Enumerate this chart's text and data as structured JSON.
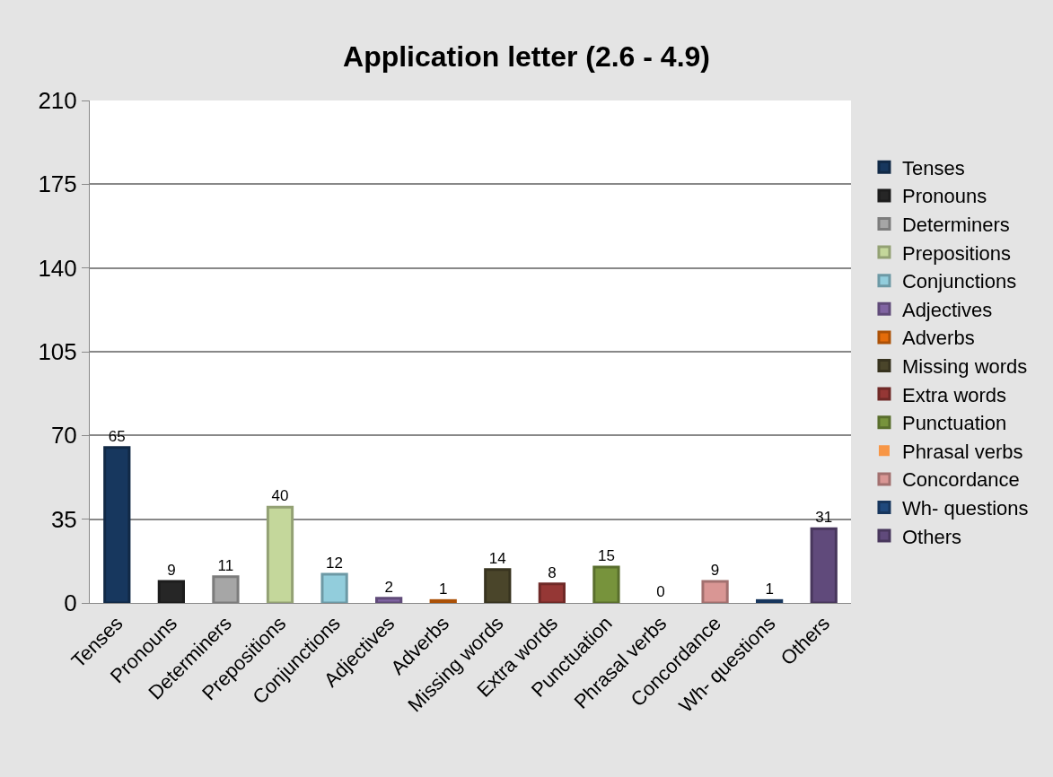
{
  "chart_data": {
    "type": "bar",
    "title": "Application letter (2.6 - 4.9)",
    "categories": [
      "Tenses",
      "Pronouns",
      "Determiners",
      "Prepositions",
      "Conjunctions",
      "Adjectives",
      "Adverbs",
      "Missing words",
      "Extra words",
      "Punctuation",
      "Phrasal verbs",
      "Concordance",
      "Wh- questions",
      "Others"
    ],
    "series": [
      {
        "name": "Tenses",
        "color": "#17375e",
        "values": [
          65,
          null,
          null,
          null,
          null,
          null,
          null,
          null,
          null,
          null,
          null,
          null,
          null,
          null
        ]
      },
      {
        "name": "Pronouns",
        "color": "#262626",
        "values": [
          null,
          9,
          null,
          null,
          null,
          null,
          null,
          null,
          null,
          null,
          null,
          null,
          null,
          null
        ]
      },
      {
        "name": "Determiners",
        "color": "#a6a6a6",
        "values": [
          null,
          null,
          11,
          null,
          null,
          null,
          null,
          null,
          null,
          null,
          null,
          null,
          null,
          null
        ]
      },
      {
        "name": "Prepositions",
        "color": "#c4d79b",
        "values": [
          null,
          null,
          null,
          40,
          null,
          null,
          null,
          null,
          null,
          null,
          null,
          null,
          null,
          null
        ]
      },
      {
        "name": "Conjunctions",
        "color": "#92cddc",
        "values": [
          null,
          null,
          null,
          null,
          12,
          null,
          null,
          null,
          null,
          null,
          null,
          null,
          null,
          null
        ]
      },
      {
        "name": "Adjectives",
        "color": "#8064a2",
        "values": [
          null,
          null,
          null,
          null,
          null,
          2,
          null,
          null,
          null,
          null,
          null,
          null,
          null,
          null
        ]
      },
      {
        "name": "Adverbs",
        "color": "#e46c0a",
        "values": [
          null,
          null,
          null,
          null,
          null,
          null,
          1,
          null,
          null,
          null,
          null,
          null,
          null,
          null
        ]
      },
      {
        "name": "Missing words",
        "color": "#4a452a",
        "values": [
          null,
          null,
          null,
          null,
          null,
          null,
          null,
          14,
          null,
          null,
          null,
          null,
          null,
          null
        ]
      },
      {
        "name": "Extra words",
        "color": "#953735",
        "values": [
          null,
          null,
          null,
          null,
          null,
          null,
          null,
          null,
          8,
          null,
          null,
          null,
          null,
          null
        ]
      },
      {
        "name": "Punctuation",
        "color": "#77933c",
        "values": [
          null,
          null,
          null,
          null,
          null,
          null,
          null,
          null,
          null,
          15,
          null,
          null,
          null,
          null
        ]
      },
      {
        "name": "Phrasal verbs",
        "color": "#f79646",
        "values": [
          null,
          null,
          null,
          null,
          null,
          null,
          null,
          null,
          null,
          null,
          0,
          null,
          null,
          null
        ]
      },
      {
        "name": "Concordance",
        "color": "#d99694",
        "values": [
          null,
          null,
          null,
          null,
          null,
          null,
          null,
          null,
          null,
          null,
          null,
          9,
          null,
          null
        ]
      },
      {
        "name": "Wh- questions",
        "color": "#1f497d",
        "values": [
          null,
          null,
          null,
          null,
          null,
          null,
          null,
          null,
          null,
          null,
          null,
          null,
          1,
          null
        ]
      },
      {
        "name": "Others",
        "color": "#604a7b",
        "values": [
          null,
          null,
          null,
          null,
          null,
          null,
          null,
          null,
          null,
          null,
          null,
          null,
          null,
          31
        ]
      }
    ],
    "ylim": [
      0,
      210
    ],
    "yticks": [
      0,
      35,
      70,
      105,
      140,
      175,
      210
    ],
    "grid": "y",
    "legend": "right",
    "data_labels": true
  }
}
